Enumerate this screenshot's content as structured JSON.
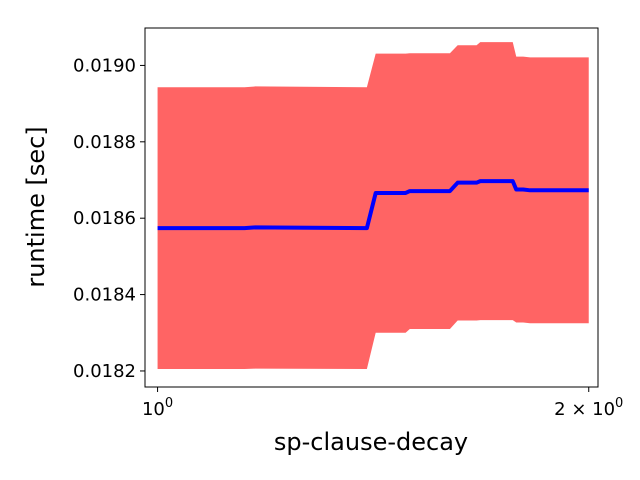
{
  "chart_data": {
    "type": "line",
    "title": "",
    "xlabel": "sp-clause-decay",
    "ylabel": "runtime [sec]",
    "x_scale": "log",
    "xlim": [
      0.98,
      2.03
    ],
    "ylim": [
      0.018158,
      0.019098
    ],
    "grid": false,
    "legend": "none",
    "x_ticks": [
      {
        "value": 1.0,
        "label_base": "10",
        "label_exp": "0"
      },
      {
        "value": 2.0,
        "label_base": "2 × 10",
        "label_exp": "0"
      }
    ],
    "y_ticks": [
      {
        "value": 0.0182,
        "label": "0.0182"
      },
      {
        "value": 0.0184,
        "label": "0.0184"
      },
      {
        "value": 0.0186,
        "label": "0.0186"
      },
      {
        "value": 0.0188,
        "label": "0.0188"
      },
      {
        "value": 0.019,
        "label": "0.0190"
      }
    ],
    "colors": {
      "mean": "#0000ff",
      "band": "#ff6464"
    },
    "series": [
      {
        "role": "mean",
        "x": [
          1.0,
          1.15,
          1.17,
          1.4,
          1.42,
          1.49,
          1.5,
          1.6,
          1.62,
          1.67,
          1.68,
          1.77,
          1.78,
          1.8,
          1.82,
          2.0
        ],
        "y": [
          0.018574,
          0.018574,
          0.018576,
          0.018574,
          0.018666,
          0.018666,
          0.018671,
          0.018671,
          0.018693,
          0.018693,
          0.018697,
          0.018697,
          0.018675,
          0.018675,
          0.018673,
          0.018673
        ]
      },
      {
        "role": "band",
        "x": [
          1.0,
          1.15,
          1.17,
          1.4,
          1.42,
          1.49,
          1.5,
          1.6,
          1.62,
          1.67,
          1.68,
          1.77,
          1.78,
          1.8,
          1.82,
          2.0
        ],
        "upper": [
          0.018943,
          0.018943,
          0.018945,
          0.018943,
          0.019031,
          0.019031,
          0.019032,
          0.019032,
          0.019053,
          0.019053,
          0.019061,
          0.019061,
          0.019023,
          0.019023,
          0.019021,
          0.019021
        ],
        "lower": [
          0.018205,
          0.018205,
          0.018206,
          0.018205,
          0.0183,
          0.0183,
          0.01831,
          0.01831,
          0.018332,
          0.018332,
          0.018333,
          0.018333,
          0.018327,
          0.018327,
          0.018325,
          0.018325
        ]
      }
    ]
  }
}
